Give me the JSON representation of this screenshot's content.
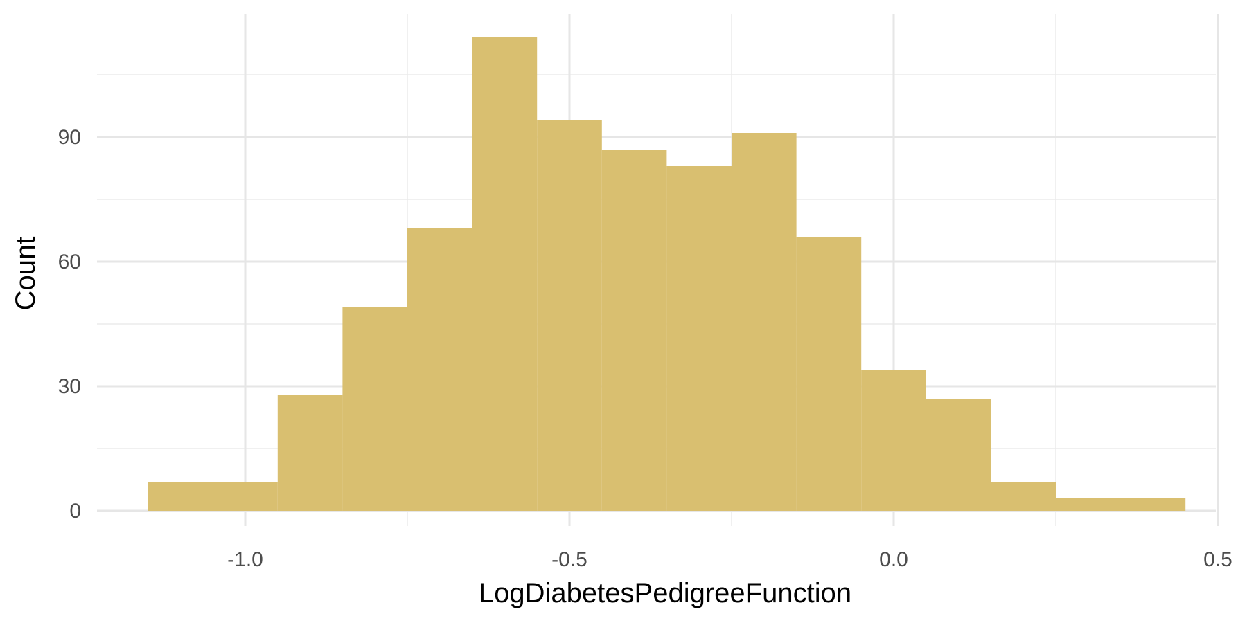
{
  "chart_data": {
    "type": "bar",
    "title": "",
    "xlabel": "LogDiabetesPedigreeFunction",
    "ylabel": "Count",
    "x_ticks": [
      "-1.0",
      "-0.5",
      "0.0",
      "0.5"
    ],
    "x_tick_values": [
      -1.0,
      -0.5,
      0.0,
      0.5
    ],
    "y_ticks": [
      "0",
      "30",
      "60",
      "90"
    ],
    "y_tick_values": [
      0,
      30,
      60,
      90
    ],
    "xlim": [
      -1.25,
      0.5
    ],
    "ylim": [
      0,
      114
    ],
    "bins": [
      {
        "x0": -1.15,
        "x1": -0.95,
        "count": 7
      },
      {
        "x0": -0.95,
        "x1": -0.85,
        "count": 28
      },
      {
        "x0": -0.85,
        "x1": -0.75,
        "count": 49
      },
      {
        "x0": -0.75,
        "x1": -0.65,
        "count": 68
      },
      {
        "x0": -0.65,
        "x1": -0.55,
        "count": 114
      },
      {
        "x0": -0.55,
        "x1": -0.45,
        "count": 94
      },
      {
        "x0": -0.45,
        "x1": -0.35,
        "count": 87
      },
      {
        "x0": -0.35,
        "x1": -0.25,
        "count": 83
      },
      {
        "x0": -0.25,
        "x1": -0.15,
        "count": 91
      },
      {
        "x0": -0.15,
        "x1": -0.05,
        "count": 66
      },
      {
        "x0": -0.05,
        "x1": 0.05,
        "count": 34
      },
      {
        "x0": 0.05,
        "x1": 0.15,
        "count": 27
      },
      {
        "x0": 0.15,
        "x1": 0.25,
        "count": 7
      },
      {
        "x0": 0.25,
        "x1": 0.45,
        "count": 3
      }
    ],
    "bar_color": "#D9BF70",
    "grid": true,
    "legend": "none"
  }
}
